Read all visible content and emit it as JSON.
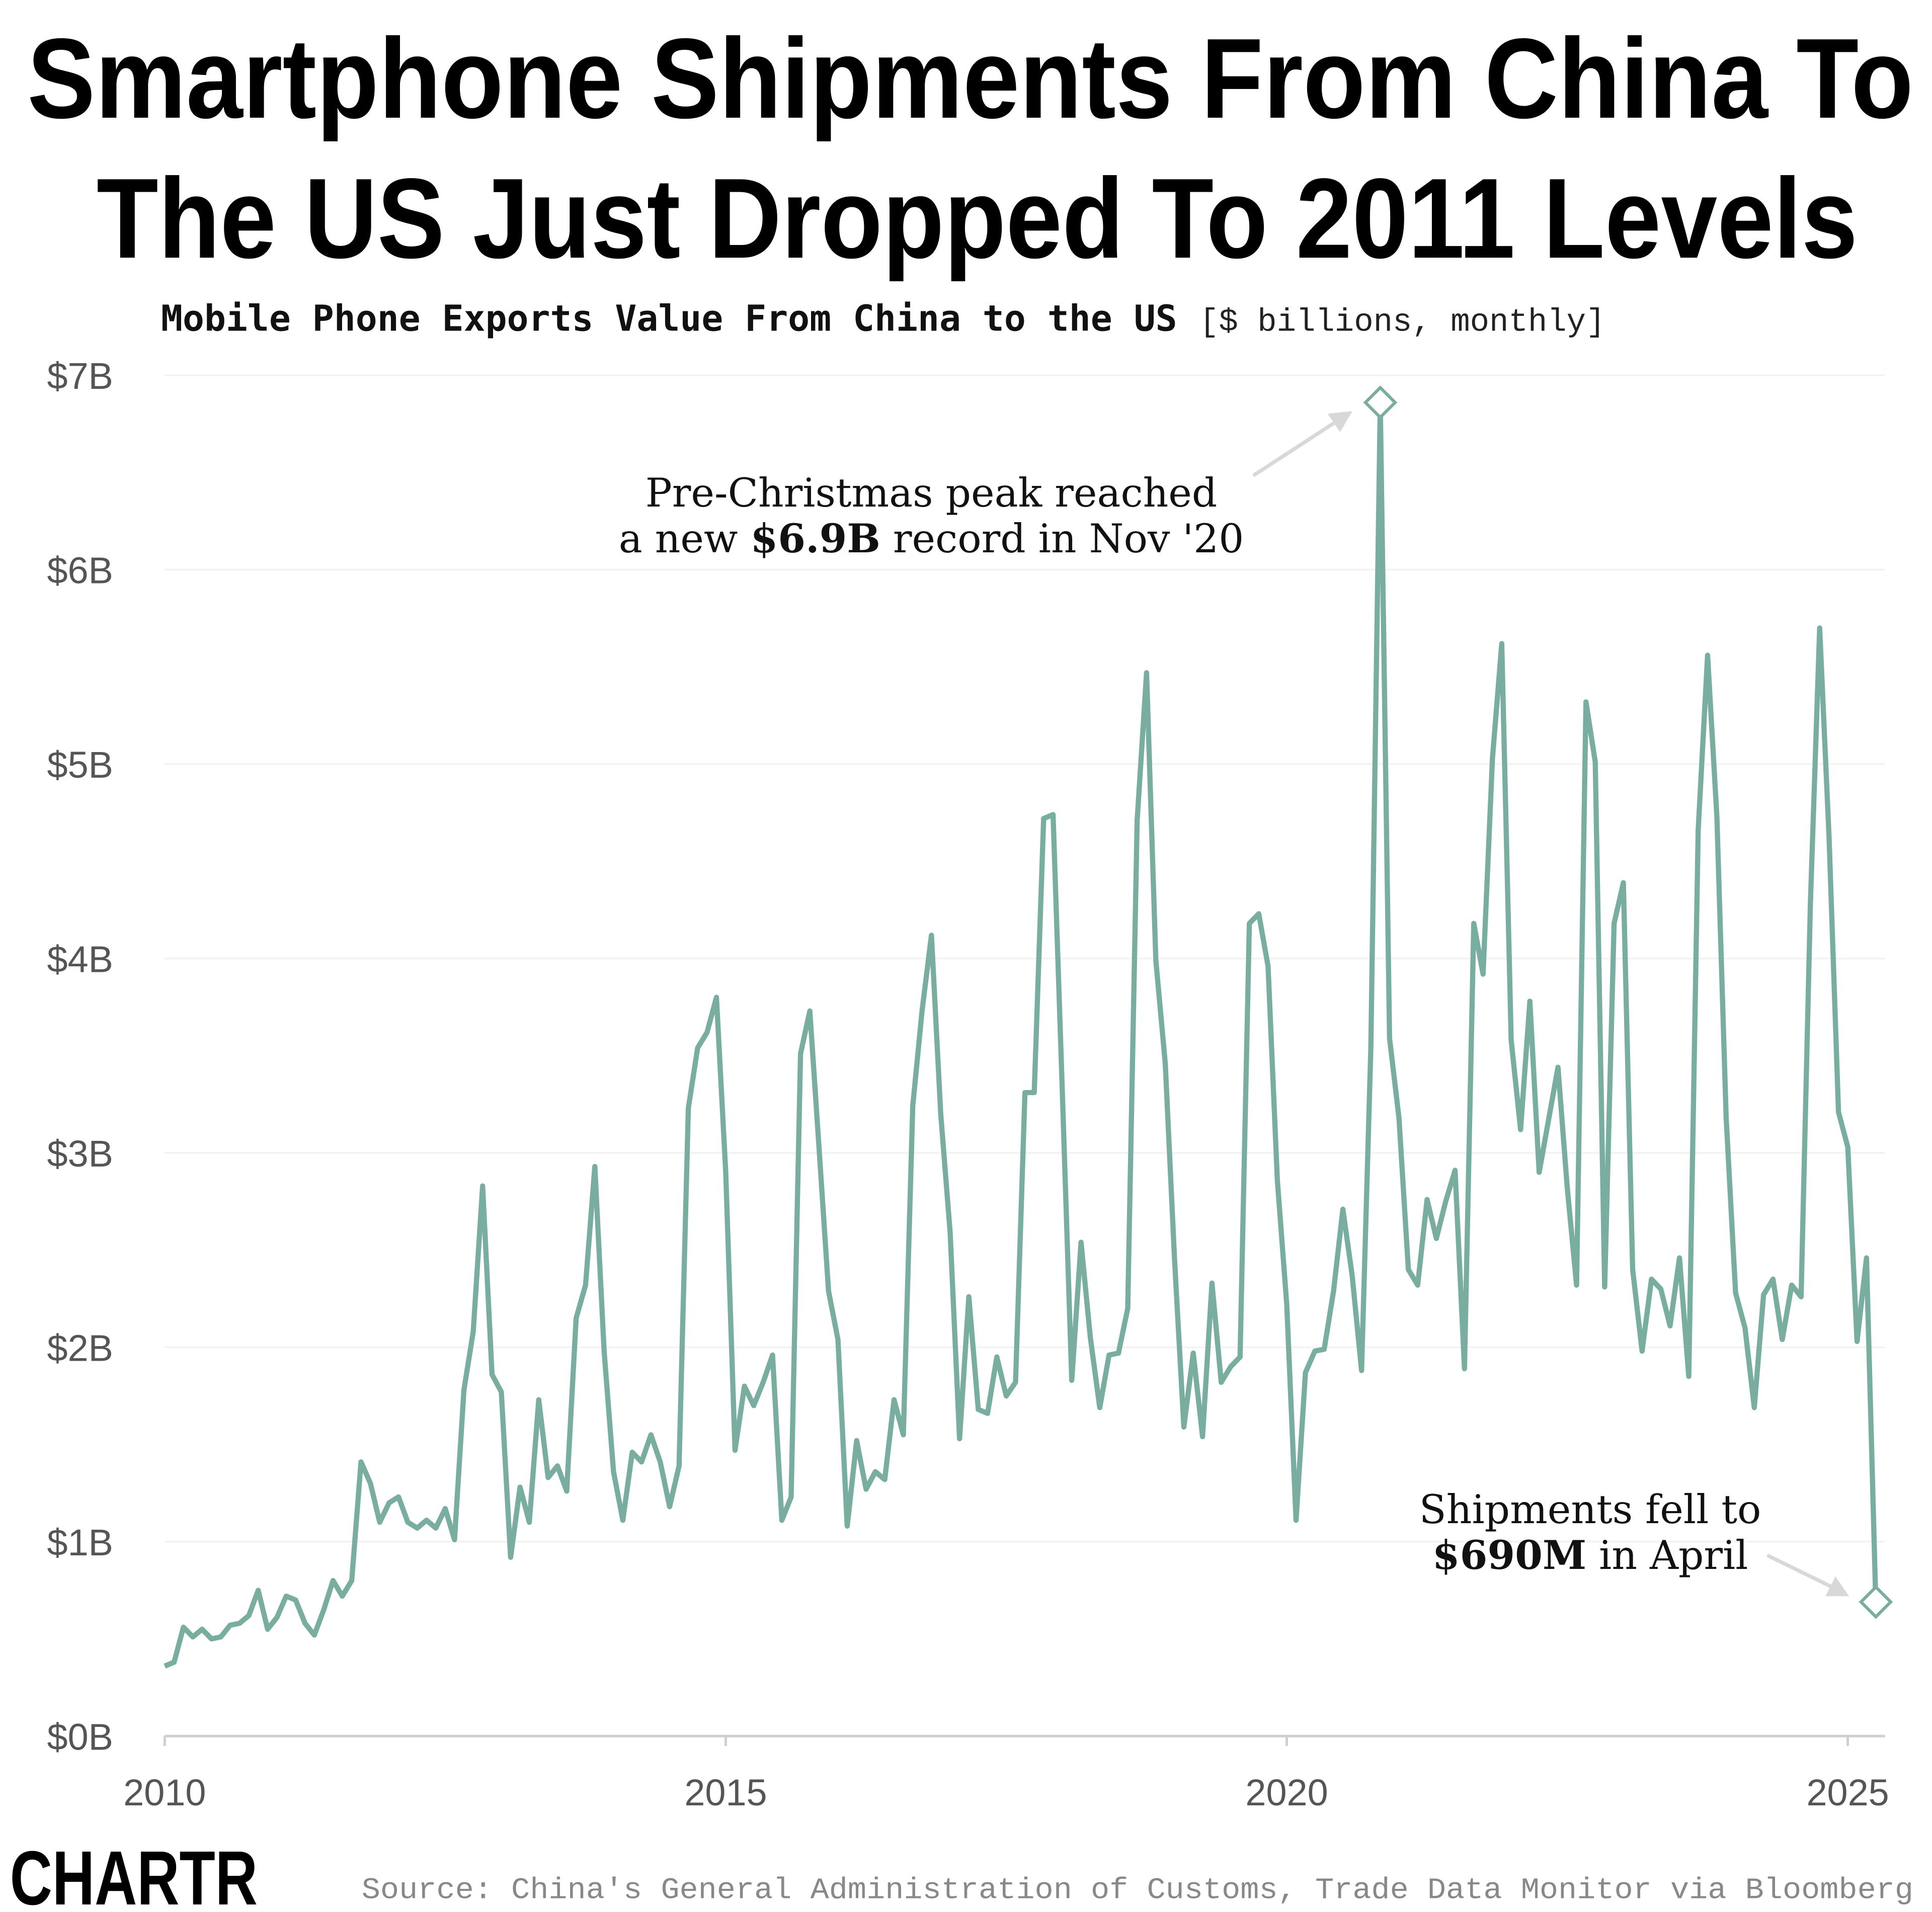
{
  "header": {
    "title_line1": "Smartphone Shipments From China To",
    "title_line2": "The US Just Dropped To 2011 Levels",
    "subtitle_bold": "Mobile Phone Exports Value From China to the US",
    "subtitle_unit": "[$ billions, monthly]"
  },
  "chart_data": {
    "type": "line",
    "title": "Mobile Phone Exports Value From China to the US",
    "unit": "[$ billions, monthly]",
    "x_start": "2010-01",
    "x_end": "2025-04",
    "frequency": "monthly",
    "x_ticks": [
      "2010",
      "2015",
      "2020",
      "2025"
    ],
    "y_ticks": [
      "$0B",
      "$1B",
      "$2B",
      "$3B",
      "$4B",
      "$5B",
      "$6B",
      "$7B"
    ],
    "ylim": [
      0,
      7
    ],
    "grid": true,
    "line_color": "#78ad9f",
    "series": [
      {
        "values": [
          0.36,
          0.38,
          0.56,
          0.51,
          0.55,
          0.5,
          0.51,
          0.57,
          0.58,
          0.62,
          0.75,
          0.55,
          0.61,
          0.72,
          0.7,
          0.58,
          0.52,
          0.65,
          0.8,
          0.72,
          0.8,
          1.41,
          1.3,
          1.1,
          1.2,
          1.23,
          1.1,
          1.07,
          1.11,
          1.07,
          1.17,
          1.01,
          1.78,
          2.08,
          2.83,
          1.86,
          1.77,
          0.92,
          1.28,
          1.1,
          1.73,
          1.33,
          1.39,
          1.26,
          2.15,
          2.32,
          2.93,
          1.98,
          1.36,
          1.11,
          1.46,
          1.41,
          1.55,
          1.41,
          1.18,
          1.39,
          3.23,
          3.54,
          3.62,
          3.8,
          2.9,
          1.47,
          1.8,
          1.7,
          1.82,
          1.96,
          1.11,
          1.23,
          3.51,
          3.73,
          3.01,
          2.29,
          2.04,
          1.08,
          1.52,
          1.27,
          1.36,
          1.32,
          1.73,
          1.55,
          3.24,
          3.73,
          4.12,
          3.2,
          2.59,
          1.53,
          2.26,
          1.68,
          1.66,
          1.95,
          1.75,
          1.82,
          3.31,
          3.31,
          4.72,
          4.74,
          3.31,
          1.83,
          2.54,
          2.05,
          1.69,
          1.96,
          1.97,
          2.2,
          4.71,
          5.47,
          3.99,
          3.46,
          2.45,
          1.59,
          1.97,
          1.54,
          2.33,
          1.82,
          1.9,
          1.95,
          4.18,
          4.23,
          3.96,
          2.86,
          2.22,
          1.11,
          1.87,
          1.98,
          1.99,
          2.29,
          2.71,
          2.37,
          1.88,
          3.54,
          6.86,
          3.59,
          3.18,
          2.4,
          2.32,
          2.76,
          2.56,
          2.75,
          2.91,
          1.89,
          4.18,
          3.92,
          5.03,
          5.62,
          3.58,
          3.12,
          3.78,
          2.9,
          3.17,
          3.44,
          2.82,
          2.32,
          5.32,
          5.01,
          2.31,
          4.18,
          4.39,
          2.4,
          1.98,
          2.35,
          2.3,
          2.11,
          2.46,
          1.85,
          4.66,
          5.56,
          4.73,
          3.18,
          2.28,
          2.1,
          1.69,
          2.27,
          2.35,
          2.04,
          2.32,
          2.26,
          4.28,
          5.7,
          4.62,
          3.21,
          3.03,
          2.03,
          2.46,
          0.69
        ]
      }
    ],
    "annotations": [
      {
        "target": "2020-11",
        "line1": "Pre-Christmas peak reached",
        "line2_pre": "a new ",
        "line2_bold": "$6.9B",
        "line2_post": " record in Nov '20"
      },
      {
        "target": "2025-04",
        "line1": "Shipments fell to",
        "line2_bold": "$690M",
        "line2_post": " in April"
      }
    ]
  },
  "footer": {
    "logo": "CHARTR",
    "source": "Source: China's General Administration of Customs, Trade Data Monitor via Bloomberg"
  }
}
